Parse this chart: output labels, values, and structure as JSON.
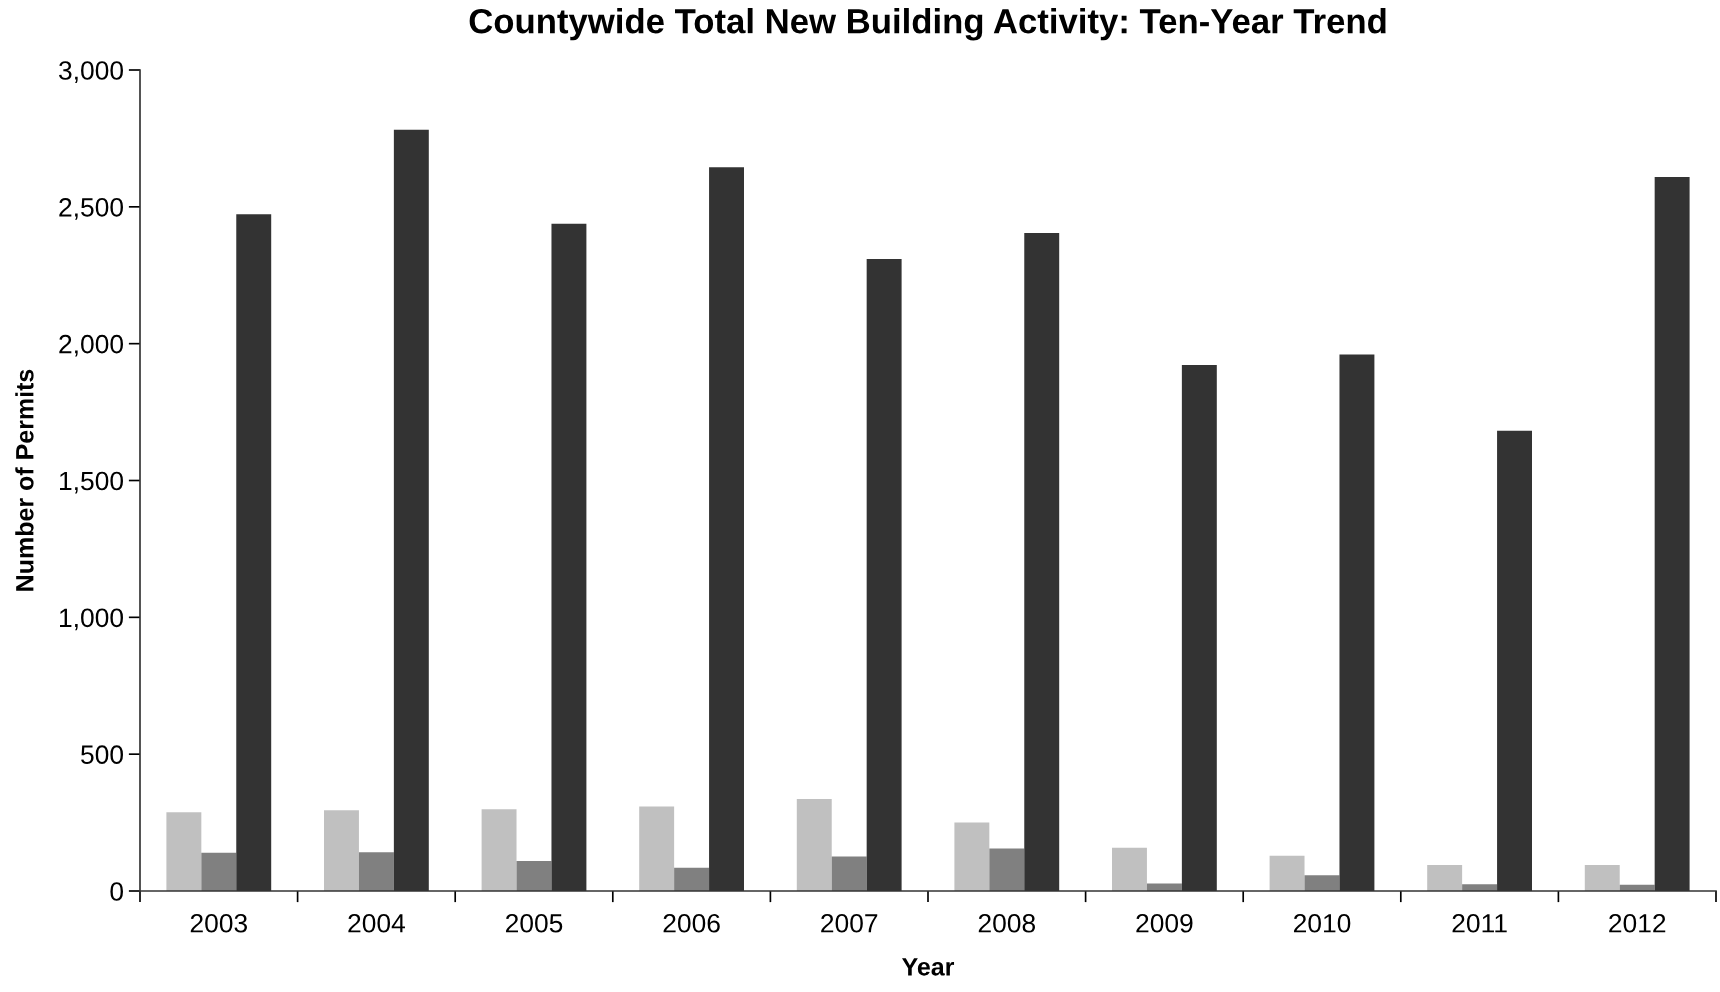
{
  "chart_data": {
    "type": "bar",
    "title": "Countywide Total New Building Activity: Ten-Year Trend",
    "xlabel": "Year",
    "ylabel": "Number of Permits",
    "categories": [
      "2003",
      "2004",
      "2005",
      "2006",
      "2007",
      "2008",
      "2009",
      "2010",
      "2011",
      "2012"
    ],
    "series": [
      {
        "color": "#c0c0c0",
        "values": [
          288,
          295,
          299,
          309,
          336,
          250,
          158,
          129,
          95,
          95
        ]
      },
      {
        "color": "#808080",
        "values": [
          140,
          142,
          110,
          85,
          126,
          155,
          27,
          58,
          25,
          23
        ]
      },
      {
        "color": "#333333",
        "values": [
          2473,
          2782,
          2438,
          2645,
          2309,
          2404,
          1922,
          1960,
          1682,
          2609
        ]
      }
    ],
    "ylim": [
      0,
      3000
    ],
    "yticks": [
      0,
      500,
      {
        "value": 1000,
        "label": "1,000"
      },
      {
        "value": 1500,
        "label": "1,500"
      },
      {
        "value": 2000,
        "label": "2,000"
      },
      {
        "value": 2500,
        "label": "2,500"
      },
      {
        "value": 3000,
        "label": "3,000"
      }
    ],
    "grid": false
  }
}
